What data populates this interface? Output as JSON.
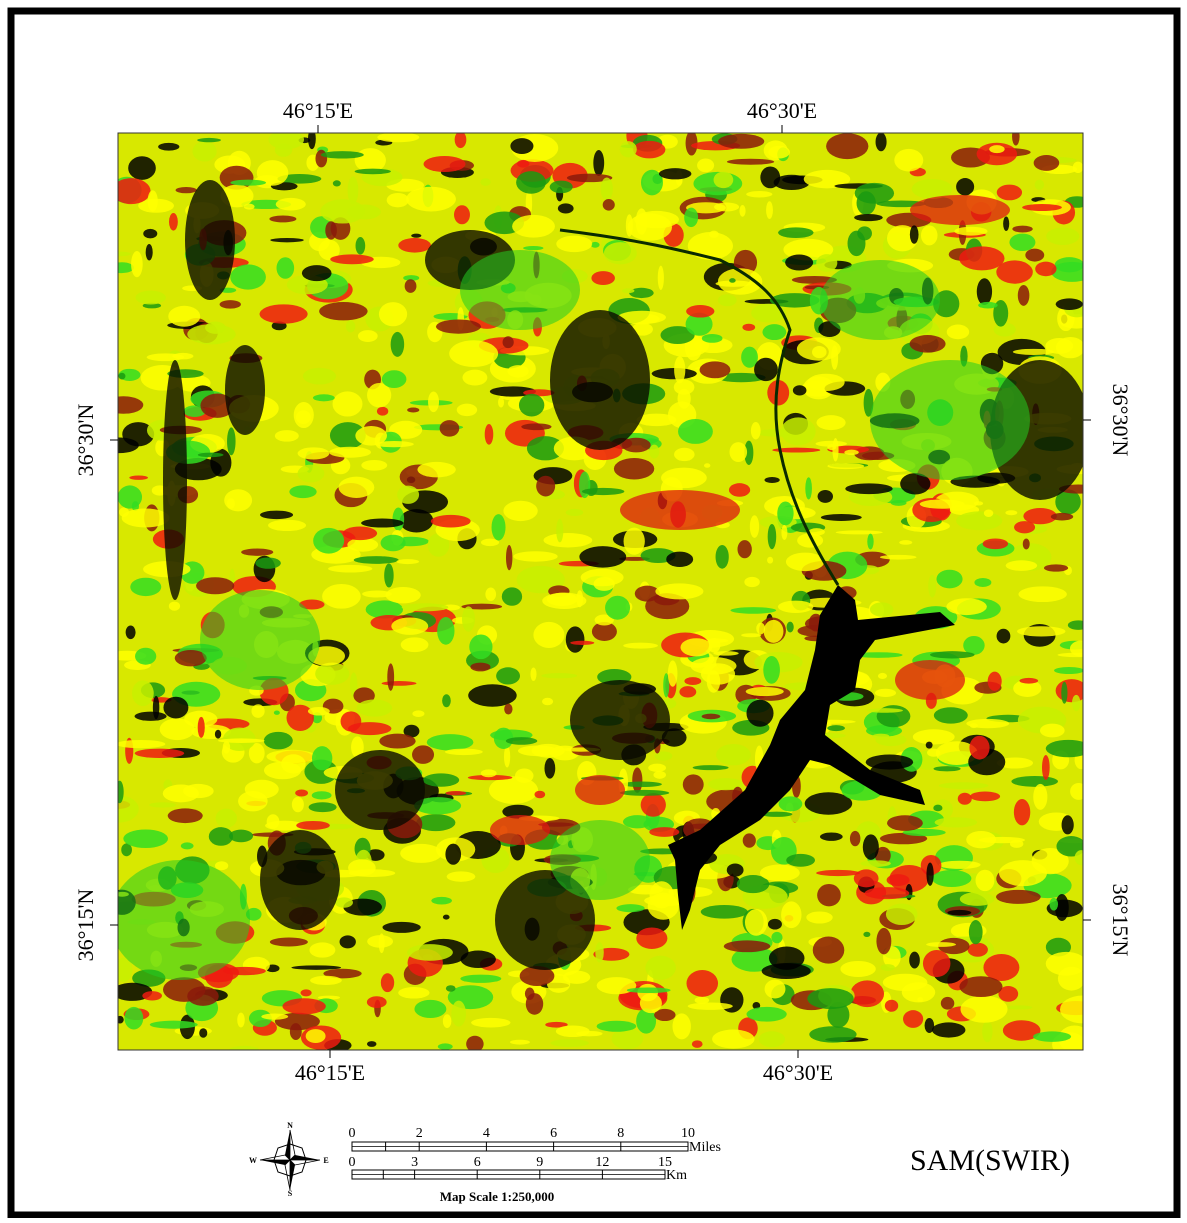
{
  "map": {
    "lon_labels_top": [
      "46°15'E",
      "46°30'E"
    ],
    "lon_labels_bottom": [
      "46°15'E",
      "46°30'E"
    ],
    "lat_labels_left": [
      "36°30'N",
      "36°15'N"
    ],
    "lat_labels_right": [
      "36°30'N",
      "36°15'N"
    ]
  },
  "scale_bar": {
    "miles_ticks": [
      0,
      2,
      4,
      6,
      8,
      10
    ],
    "miles_unit": "Miles",
    "km_ticks": [
      0,
      3,
      6,
      9,
      12,
      15
    ],
    "km_unit": "Km",
    "scale_text": "Map Scale 1:250,000"
  },
  "compass": {
    "n": "N",
    "e": "E",
    "s": "S",
    "w": "W"
  },
  "title": "SAM(SWIR)"
}
